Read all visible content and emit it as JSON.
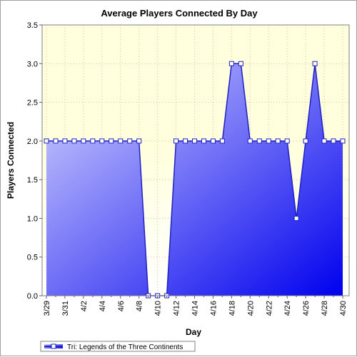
{
  "chart_data": {
    "type": "area",
    "title": "Average Players Connected By Day",
    "xlabel": "Day",
    "ylabel": "Players Connected",
    "ylim": [
      0,
      3.5
    ],
    "yticks": [
      "0.0",
      "0.5",
      "1.0",
      "1.5",
      "2.0",
      "2.5",
      "3.0",
      "3.5"
    ],
    "x": [
      "3/29",
      "3/30",
      "3/31",
      "4/1",
      "4/2",
      "4/3",
      "4/4",
      "4/5",
      "4/6",
      "4/7",
      "4/8",
      "4/9",
      "4/10",
      "4/11",
      "4/12",
      "4/13",
      "4/14",
      "4/15",
      "4/16",
      "4/17",
      "4/18",
      "4/19",
      "4/20",
      "4/21",
      "4/22",
      "4/23",
      "4/24",
      "4/25",
      "4/26",
      "4/27",
      "4/28",
      "4/29",
      "4/30"
    ],
    "xtick_labels": [
      "3/29",
      "3/31",
      "4/2",
      "4/4",
      "4/6",
      "4/8",
      "4/10",
      "4/12",
      "4/14",
      "4/16",
      "4/18",
      "4/20",
      "4/22",
      "4/24",
      "4/26",
      "4/28",
      "4/30"
    ],
    "series": [
      {
        "name": "Tri: Legends of the Three Continents",
        "values": [
          2,
          2,
          2,
          2,
          2,
          2,
          2,
          2,
          2,
          2,
          2,
          0,
          0,
          0,
          2,
          2,
          2,
          2,
          2,
          2,
          3,
          3,
          2,
          2,
          2,
          2,
          2,
          1,
          2,
          3,
          2,
          2,
          2
        ]
      }
    ],
    "grid": true,
    "legend_position": "bottom-left",
    "colors": {
      "plot_background_top": "#ffffdd",
      "plot_background_bottom": "#ffffff",
      "area_light": "#d8d8ff",
      "area_dark": "#0000ee",
      "line": "#2020c0",
      "marker_fill": "#ffffff",
      "grid": "#c8c8a0"
    }
  }
}
